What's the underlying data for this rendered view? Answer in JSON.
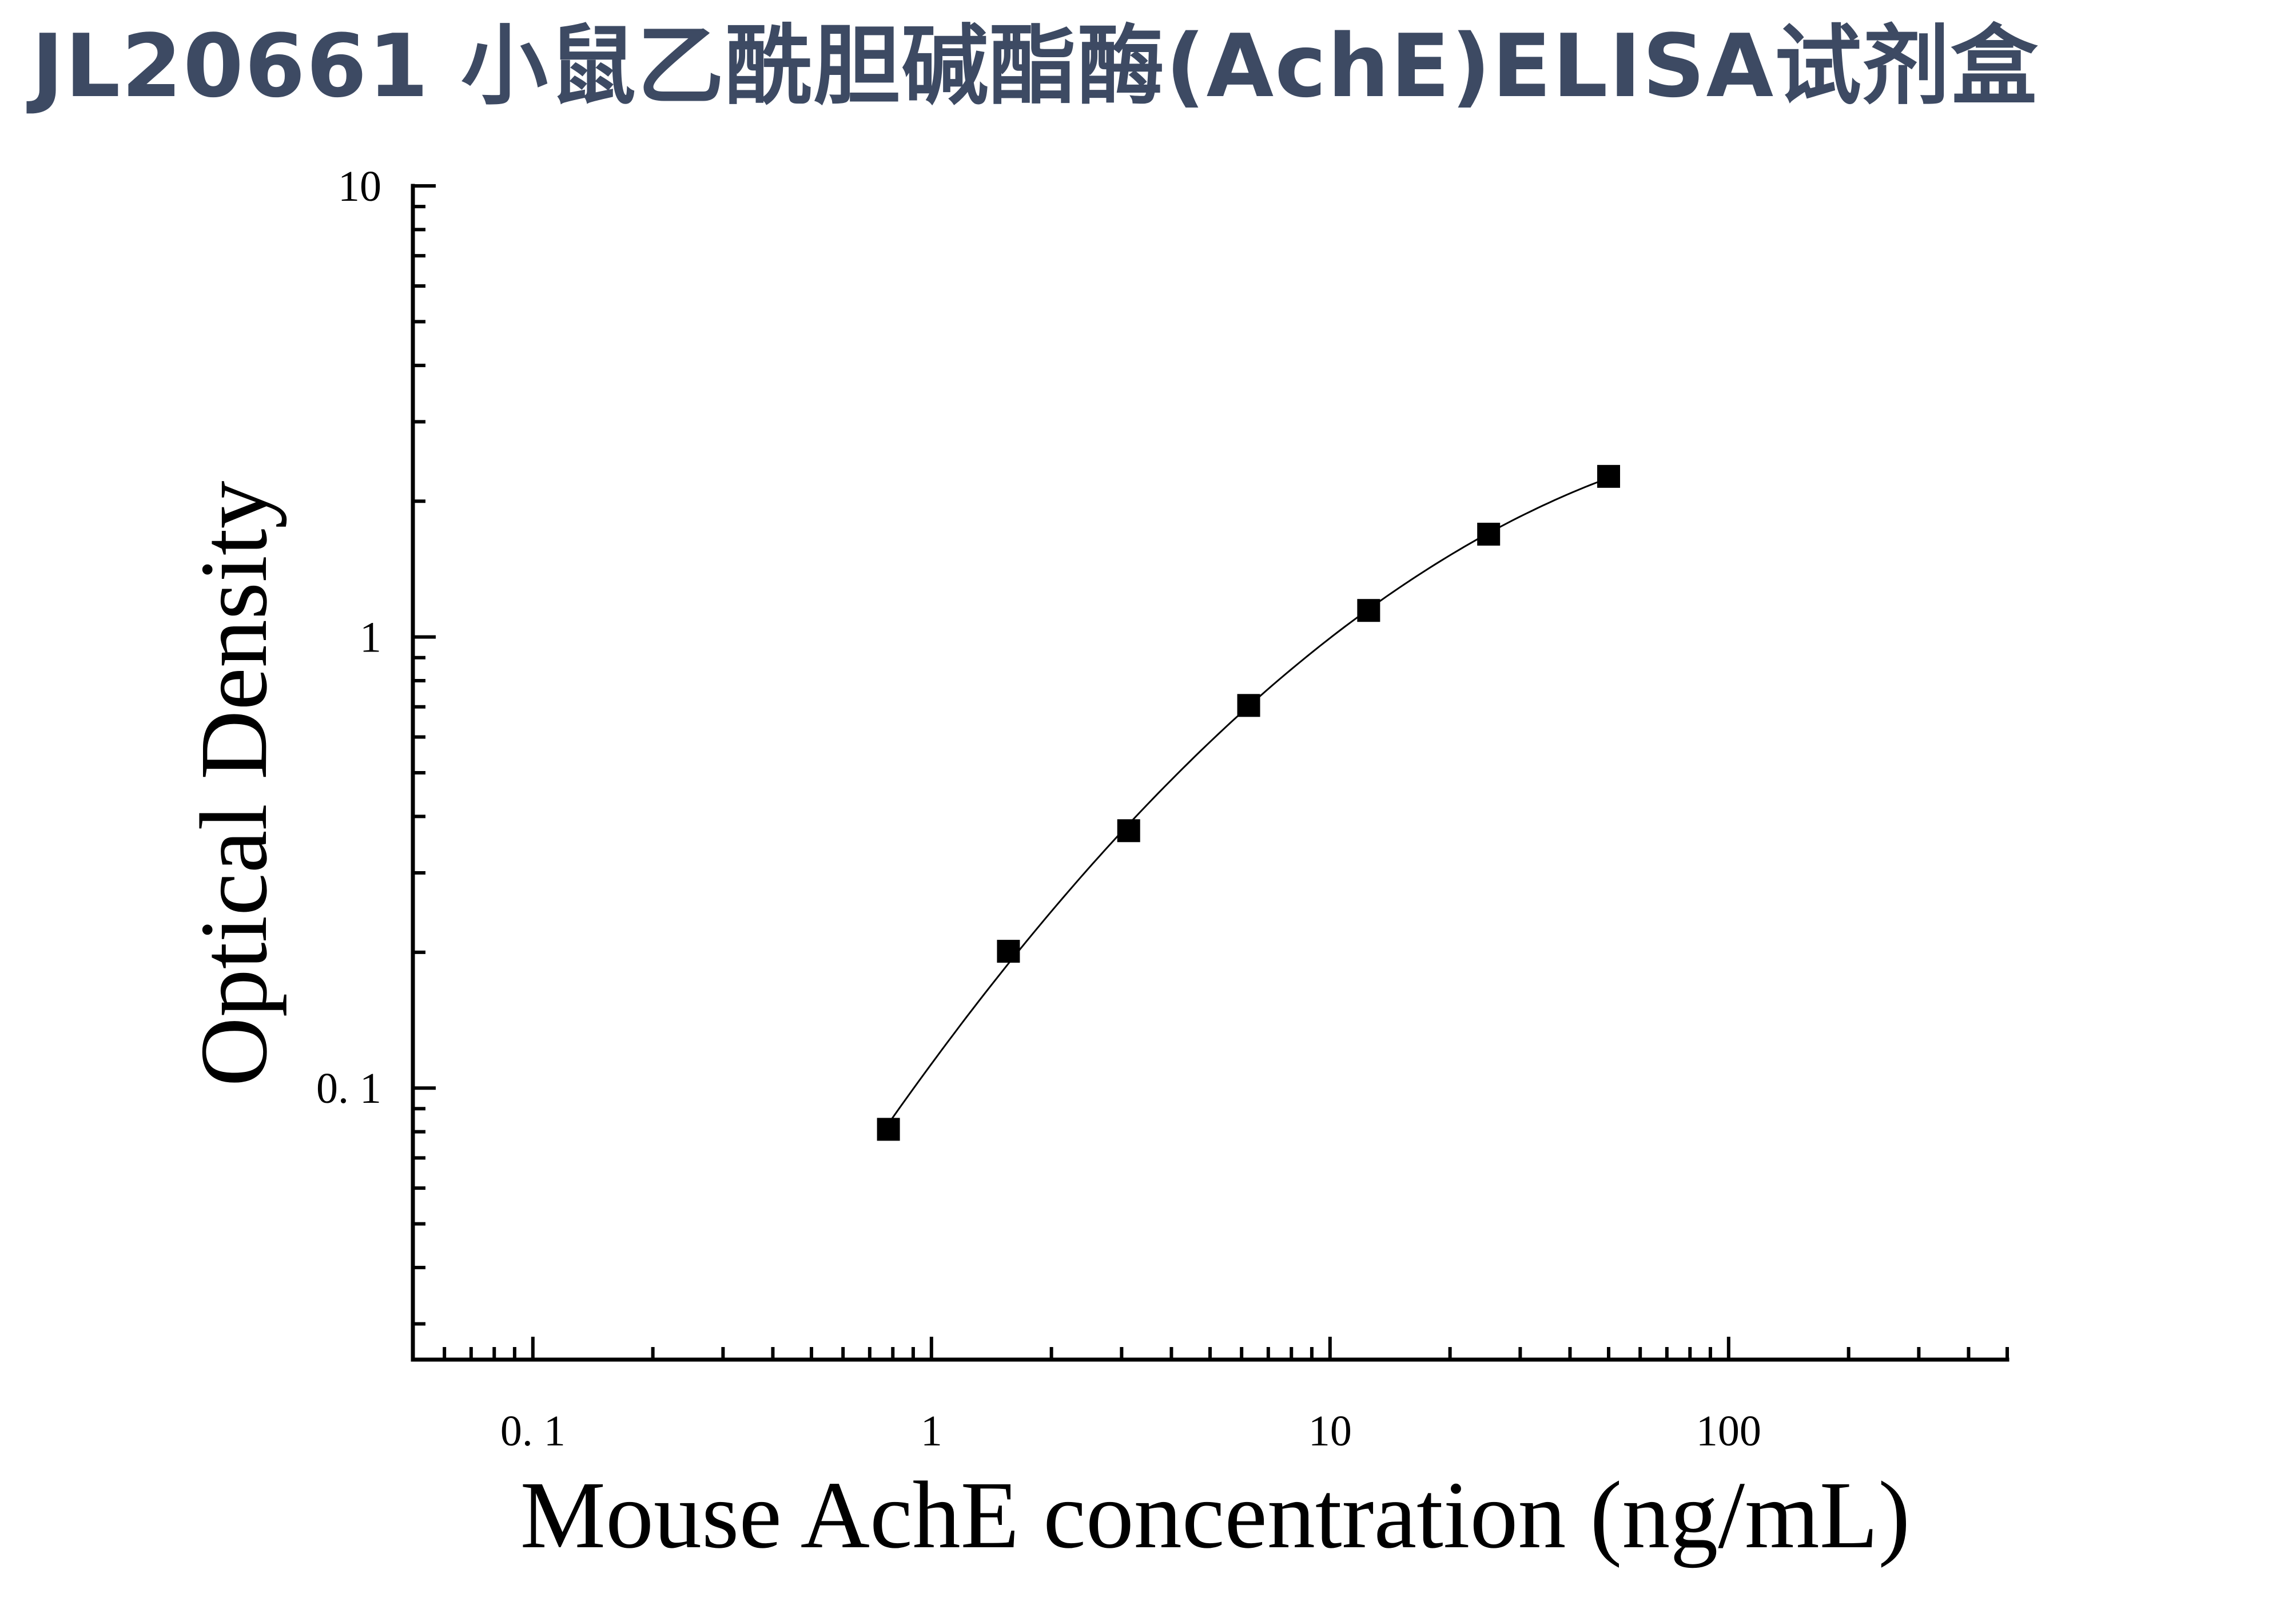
{
  "title": "JL20661 小鼠乙酰胆碱酯酶(AchE)ELISA试剂盒",
  "chart_data": {
    "type": "scatter",
    "title": "JL20661 小鼠乙酰胆碱酯酶(AchE)ELISA试剂盒",
    "xlabel": "Mouse AchE concentration (ng/mL)",
    "ylabel": "Optical Density",
    "x_scale": "log",
    "y_scale": "log",
    "xlim": [
      0.05,
      500
    ],
    "ylim": [
      0.025,
      10
    ],
    "x_ticks": [
      0.1,
      1,
      10,
      100
    ],
    "x_tick_labels": [
      "0. 1",
      "1",
      "10",
      "100"
    ],
    "y_ticks": [
      0.1,
      1,
      10
    ],
    "y_tick_labels": [
      "0. 1",
      "1",
      "10"
    ],
    "grid": false,
    "legend": "none",
    "fit_curve": true,
    "marker": "square",
    "marker_color": "#000000",
    "series": [
      {
        "x": [
          0.78,
          1.56,
          3.125,
          6.25,
          12.5,
          25,
          50
        ],
        "y": [
          0.081,
          0.201,
          0.372,
          0.705,
          1.145,
          1.69,
          2.27
        ]
      }
    ]
  }
}
